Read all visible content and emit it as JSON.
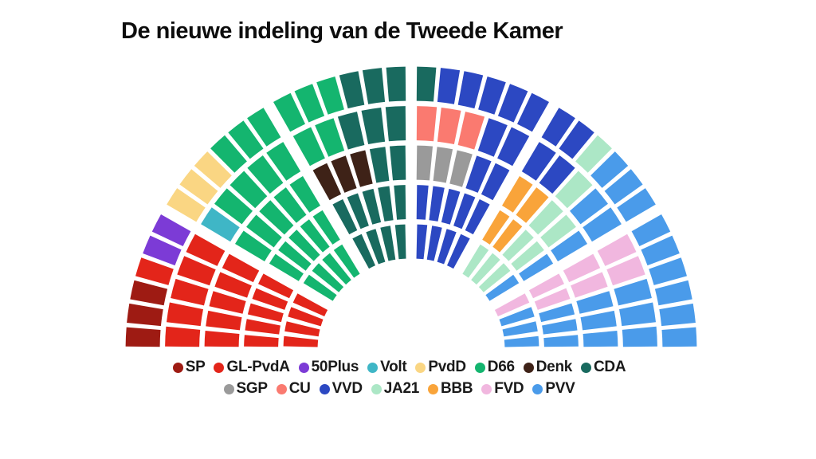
{
  "title": "De nieuwe indeling van de Tweede Kamer",
  "parties": {
    "SP": {
      "label": "SP",
      "color": "#9E1B13",
      "seats": 3
    },
    "GLPvdA": {
      "label": "GL-PvdA",
      "color": "#E3251A",
      "seats": 20
    },
    "50Plus": {
      "label": "50Plus",
      "color": "#7C3BD6",
      "seats": 2
    },
    "Volt": {
      "label": "Volt",
      "color": "#3FB6C6",
      "seats": 1
    },
    "PvdD": {
      "label": "PvdD",
      "color": "#FAD683",
      "seats": 3
    },
    "D66": {
      "label": "D66",
      "color": "#14B56F",
      "seats": 26
    },
    "Denk": {
      "label": "Denk",
      "color": "#3E2217",
      "seats": 3
    },
    "CDA": {
      "label": "CDA",
      "color": "#196A5F",
      "seats": 18
    },
    "SGP": {
      "label": "SGP",
      "color": "#9A9A9A",
      "seats": 3
    },
    "CU": {
      "label": "CU",
      "color": "#FA7A70",
      "seats": 3
    },
    "VVD": {
      "label": "VVD",
      "color": "#2C48C2",
      "seats": 22
    },
    "JA21": {
      "label": "JA21",
      "color": "#ACE7C6",
      "seats": 9
    },
    "BBB": {
      "label": "BBB",
      "color": "#F9A43A",
      "seats": 4
    },
    "FVD": {
      "label": "FVD",
      "color": "#F1B7DF",
      "seats": 7
    },
    "PVV": {
      "label": "PVV",
      "color": "#4A9BEA",
      "seats": 26
    }
  },
  "legend": {
    "rows": [
      [
        "SP",
        "GLPvdA",
        "50Plus",
        "Volt",
        "PvdD",
        "D66",
        "Denk",
        "CDA"
      ],
      [
        "SGP",
        "CU",
        "VVD",
        "JA21",
        "BBB",
        "FVD",
        "PVV"
      ]
    ]
  },
  "chart_data": {
    "type": "parliament",
    "title": "De nieuwe indeling van de Tweede Kamer",
    "total_seats": 150,
    "results": [
      {
        "party": "SP",
        "seats": 3
      },
      {
        "party": "GL-PvdA",
        "seats": 20
      },
      {
        "party": "50Plus",
        "seats": 2
      },
      {
        "party": "Volt",
        "seats": 1
      },
      {
        "party": "PvdD",
        "seats": 3
      },
      {
        "party": "D66",
        "seats": 26
      },
      {
        "party": "Denk",
        "seats": 3
      },
      {
        "party": "CDA",
        "seats": 18
      },
      {
        "party": "SGP",
        "seats": 3
      },
      {
        "party": "CU",
        "seats": 3
      },
      {
        "party": "VVD",
        "seats": 22
      },
      {
        "party": "JA21",
        "seats": 9
      },
      {
        "party": "BBB",
        "seats": 4
      },
      {
        "party": "FVD",
        "seats": 7
      },
      {
        "party": "PVV",
        "seats": 26
      }
    ],
    "fans": [
      {
        "arcs": [
          [
            "GLPvdA",
            "GLPvdA",
            "GLPvdA",
            "GLPvdA"
          ],
          [
            "GLPvdA",
            "GLPvdA",
            "GLPvdA",
            "GLPvdA",
            "GLPvdA"
          ],
          [
            "GLPvdA",
            "GLPvdA",
            "GLPvdA",
            "GLPvdA",
            "GLPvdA"
          ],
          [
            "GLPvdA",
            "GLPvdA",
            "GLPvdA",
            "GLPvdA",
            "GLPvdA"
          ],
          [
            "SP",
            "SP",
            "SP",
            "GLPvdA",
            "50Plus",
            "50Plus"
          ]
        ]
      },
      {
        "arcs": [
          [
            "D66",
            "D66",
            "D66",
            "D66"
          ],
          [
            "D66",
            "D66",
            "D66",
            "D66",
            "D66"
          ],
          [
            "D66",
            "D66",
            "D66",
            "D66",
            "D66"
          ],
          [
            "Volt",
            "D66",
            "D66",
            "D66",
            "D66"
          ],
          [
            "PvdD",
            "PvdD",
            "PvdD",
            "D66",
            "D66",
            "D66"
          ]
        ]
      },
      {
        "arcs": [
          [
            "CDA",
            "CDA",
            "CDA",
            "CDA"
          ],
          [
            "CDA",
            "CDA",
            "CDA",
            "CDA",
            "CDA"
          ],
          [
            "Denk",
            "Denk",
            "Denk",
            "CDA",
            "CDA"
          ],
          [
            "D66",
            "D66",
            "CDA",
            "CDA",
            "CDA"
          ],
          [
            "D66",
            "D66",
            "D66",
            "CDA",
            "CDA",
            "CDA"
          ]
        ]
      },
      {
        "arcs": [
          [
            "VVD",
            "VVD",
            "VVD",
            "VVD"
          ],
          [
            "VVD",
            "VVD",
            "VVD",
            "VVD",
            "VVD"
          ],
          [
            "SGP",
            "SGP",
            "SGP",
            "VVD",
            "VVD"
          ],
          [
            "CU",
            "CU",
            "CU",
            "VVD",
            "VVD"
          ],
          [
            "CDA",
            "VVD",
            "VVD",
            "VVD",
            "VVD",
            "VVD"
          ]
        ]
      },
      {
        "arcs": [
          [
            "JA21",
            "JA21",
            "JA21",
            "PVV"
          ],
          [
            "BBB",
            "BBB",
            "JA21",
            "JA21",
            "PVV"
          ],
          [
            "BBB",
            "BBB",
            "JA21",
            "JA21",
            "PVV"
          ],
          [
            "VVD",
            "VVD",
            "JA21",
            "PVV",
            "PVV"
          ],
          [
            "VVD",
            "VVD",
            "JA21",
            "PVV",
            "PVV",
            "PVV"
          ]
        ]
      },
      {
        "arcs": [
          [
            "FVD",
            "PVV",
            "PVV",
            "PVV"
          ],
          [
            "FVD",
            "FVD",
            "PVV",
            "PVV",
            "PVV"
          ],
          [
            "FVD",
            "FVD",
            "PVV",
            "PVV",
            "PVV"
          ],
          [
            "FVD",
            "FVD",
            "PVV",
            "PVV",
            "PVV"
          ],
          [
            "PVV",
            "PVV",
            "PVV",
            "PVV",
            "PVV",
            "PVV"
          ]
        ]
      }
    ]
  }
}
